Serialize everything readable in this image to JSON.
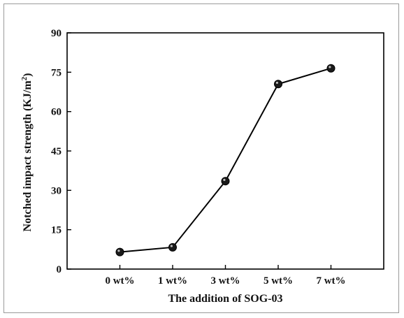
{
  "chart_data": {
    "type": "line",
    "categories": [
      "0 wt%",
      "1 wt%",
      "3 wt%",
      "5 wt%",
      "7 wt%"
    ],
    "series": [
      {
        "values": [
          6.5,
          8.3,
          33.5,
          70.5,
          76.5
        ]
      }
    ],
    "title": "",
    "xlabel": "The addition of SOG-03",
    "ylabel": "Notched impact strength (KJ/m",
    "ylabel_superscript": "2",
    "ylabel_close": ")",
    "ylim": [
      0,
      90
    ],
    "yticks": [
      "0",
      "15",
      "30",
      "45",
      "60",
      "75",
      "90"
    ],
    "grid": false,
    "line_color": "#000000",
    "marker_color": "#1a1a1a"
  }
}
